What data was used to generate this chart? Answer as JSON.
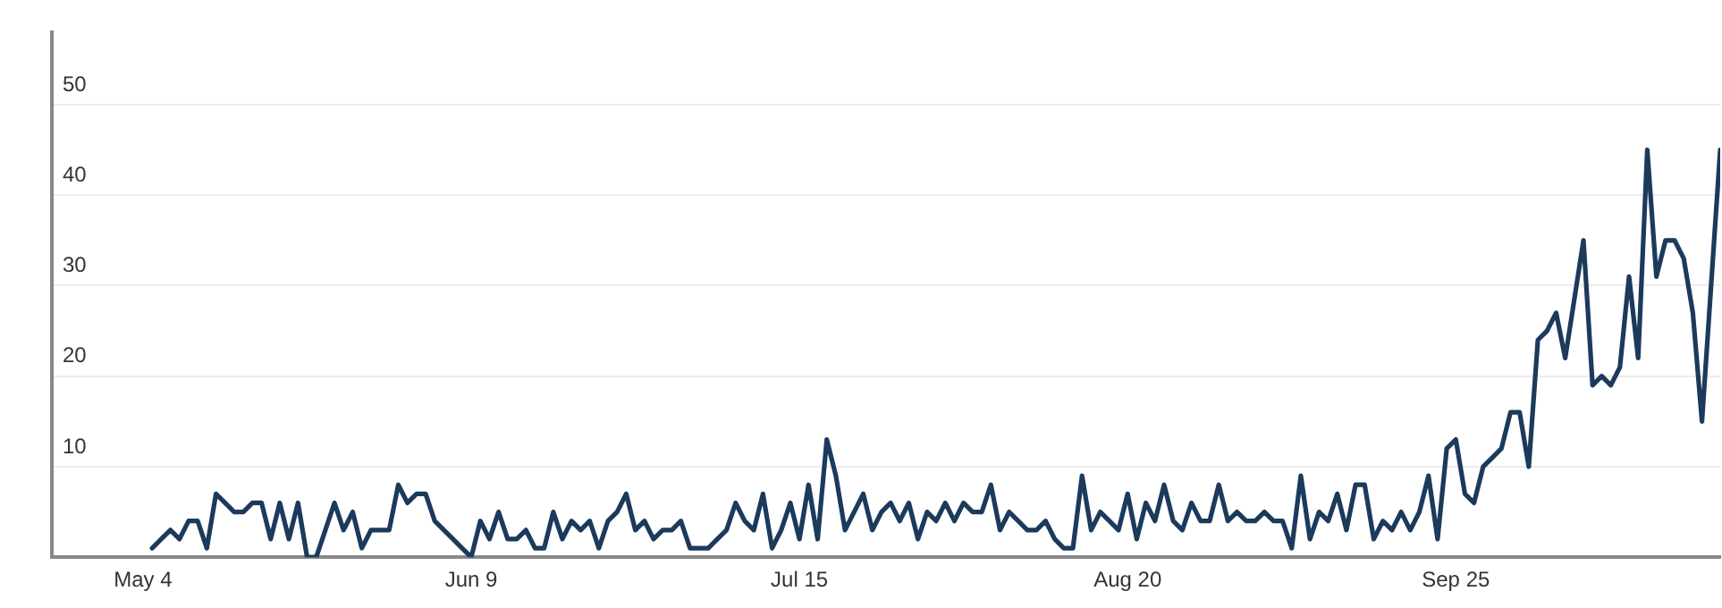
{
  "chart_data": {
    "type": "line",
    "color": "#1b3a5c",
    "marker": "none",
    "line_style": "solid",
    "grid": "y",
    "legend": false,
    "x": [
      "--05-05",
      "--05-06",
      "--05-07",
      "--05-08",
      "--05-09",
      "--05-10",
      "--05-11",
      "--05-12",
      "--05-13",
      "--05-14",
      "--05-15",
      "--05-16",
      "--05-17",
      "--05-18",
      "--05-19",
      "--05-20",
      "--05-21",
      "--05-22",
      "--05-23",
      "--05-24",
      "--05-25",
      "--05-26",
      "--05-27",
      "--05-28",
      "--05-29",
      "--05-30",
      "--05-31",
      "--06-01",
      "--06-02",
      "--06-03",
      "--06-04",
      "--06-05",
      "--06-06",
      "--06-07",
      "--06-08",
      "--06-09",
      "--06-10",
      "--06-11",
      "--06-12",
      "--06-13",
      "--06-14",
      "--06-15",
      "--06-16",
      "--06-17",
      "--06-18",
      "--06-19",
      "--06-20",
      "--06-21",
      "--06-22",
      "--06-23",
      "--06-24",
      "--06-25",
      "--06-26",
      "--06-27",
      "--06-28",
      "--06-29",
      "--06-30",
      "--07-01",
      "--07-02",
      "--07-03",
      "--07-04",
      "--07-05",
      "--07-06",
      "--07-07",
      "--07-08",
      "--07-09",
      "--07-10",
      "--07-11",
      "--07-12",
      "--07-13",
      "--07-14",
      "--07-15",
      "--07-16",
      "--07-17",
      "--07-18",
      "--07-19",
      "--07-20",
      "--07-21",
      "--07-22",
      "--07-23",
      "--07-24",
      "--07-25",
      "--07-26",
      "--07-27",
      "--07-28",
      "--07-29",
      "--07-30",
      "--07-31",
      "--08-01",
      "--08-02",
      "--08-03",
      "--08-04",
      "--08-05",
      "--08-06",
      "--08-07",
      "--08-08",
      "--08-09",
      "--08-10",
      "--08-11",
      "--08-12",
      "--08-13",
      "--08-14",
      "--08-15",
      "--08-16",
      "--08-17",
      "--08-18",
      "--08-19",
      "--08-20",
      "--08-21",
      "--08-22",
      "--08-23",
      "--08-24",
      "--08-25",
      "--08-26",
      "--08-27",
      "--08-28",
      "--08-29",
      "--08-30",
      "--08-31",
      "--09-01",
      "--09-02",
      "--09-03",
      "--09-04",
      "--09-05",
      "--09-06",
      "--09-07",
      "--09-08",
      "--09-09",
      "--09-10",
      "--09-11",
      "--09-12",
      "--09-13",
      "--09-14",
      "--09-15",
      "--09-16",
      "--09-17",
      "--09-18",
      "--09-19",
      "--09-20",
      "--09-21",
      "--09-22",
      "--09-23",
      "--09-24",
      "--09-25",
      "--09-26",
      "--09-27",
      "--09-28",
      "--09-29",
      "--09-30",
      "--10-01",
      "--10-02",
      "--10-03",
      "--10-04",
      "--10-05",
      "--10-06",
      "--10-07",
      "--10-09",
      "--10-10",
      "--10-11",
      "--10-12",
      "--10-13",
      "--10-14",
      "--10-15",
      "--10-16",
      "--10-17",
      "--10-18",
      "--10-19",
      "--10-20",
      "--10-21",
      "--10-22",
      "--10-24"
    ],
    "values": [
      1,
      2,
      3,
      2,
      4,
      4,
      1,
      7,
      6,
      5,
      5,
      6,
      6,
      2,
      6,
      2,
      6,
      0,
      0,
      3,
      6,
      3,
      5,
      1,
      3,
      3,
      3,
      8,
      6,
      7,
      7,
      4,
      3,
      2,
      1,
      0,
      4,
      2,
      5,
      2,
      2,
      3,
      1,
      1,
      5,
      2,
      4,
      3,
      4,
      1,
      4,
      5,
      7,
      3,
      4,
      2,
      3,
      3,
      4,
      1,
      1,
      1,
      2,
      3,
      6,
      4,
      3,
      7,
      1,
      3,
      6,
      2,
      8,
      2,
      13,
      9,
      3,
      5,
      7,
      3,
      5,
      6,
      4,
      6,
      2,
      5,
      4,
      6,
      4,
      6,
      5,
      5,
      8,
      3,
      5,
      4,
      3,
      3,
      4,
      2,
      1,
      1,
      9,
      3,
      5,
      4,
      3,
      7,
      2,
      6,
      4,
      8,
      4,
      3,
      6,
      4,
      4,
      8,
      4,
      5,
      4,
      4,
      5,
      4,
      4,
      1,
      9,
      2,
      5,
      4,
      7,
      3,
      8,
      8,
      2,
      4,
      3,
      5,
      3,
      5,
      9,
      2,
      12,
      13,
      7,
      6,
      10,
      11,
      12,
      16,
      16,
      10,
      24,
      25,
      27,
      22,
      35,
      19,
      20,
      19,
      21,
      31,
      22,
      45,
      31,
      35,
      35,
      33,
      27,
      15,
      45
    ],
    "xlim": [
      "--04-24",
      "--10-24"
    ],
    "xticks": [
      {
        "value": "--05-04",
        "label": "May 4"
      },
      {
        "value": "--06-09",
        "label": "Jun 9"
      },
      {
        "value": "--07-15",
        "label": "Jul 15"
      },
      {
        "value": "--08-20",
        "label": "Aug 20"
      },
      {
        "value": "--09-25",
        "label": "Sep 25"
      }
    ],
    "ylim": [
      0,
      58
    ],
    "yticks": [
      {
        "value": 0,
        "label": null
      },
      10,
      20,
      30,
      40,
      50
    ]
  }
}
